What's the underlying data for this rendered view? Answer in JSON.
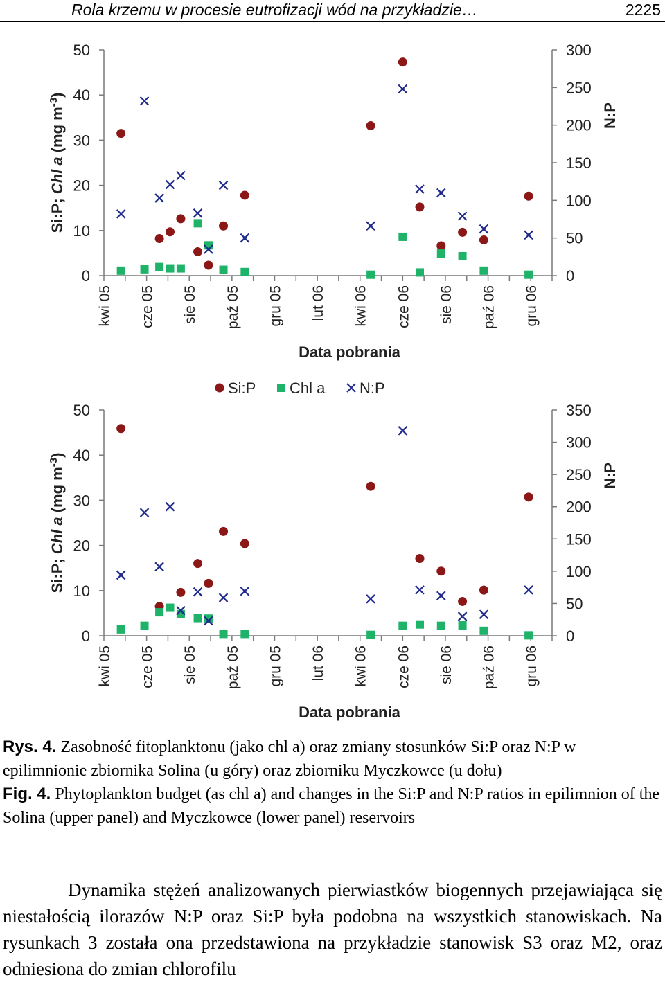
{
  "running_head": {
    "title": "Rola krzemu w procesie eutrofizacji wód na przykładzie…",
    "page": "2225"
  },
  "colors": {
    "sip": "#8b1717",
    "chla": "#1fb36a",
    "np": "#1f2a8a",
    "axis": "#7a7a7a"
  },
  "legend": {
    "sip": "Si:P",
    "chla": "Chl a",
    "np": "N:P"
  },
  "chart_data": [
    {
      "type": "scatter",
      "panel": "Solina (upper panel)",
      "xlabel": "Data pobrania",
      "ylabel_parts": [
        "Si:P; ",
        "Chl a",
        " (mg m",
        "-3",
        ")"
      ],
      "y2label": "N:P",
      "x_categories": [
        "kwi 05",
        "cze 05",
        "sie 05",
        "paź 05",
        "gru 05",
        "lut 06",
        "kwi 06",
        "cze 06",
        "sie 06",
        "paź 06",
        "gru 06"
      ],
      "x_range": [
        0,
        10.5
      ],
      "ylim": [
        0,
        50
      ],
      "yticks": [
        0,
        10,
        20,
        30,
        40,
        50
      ],
      "y2lim": [
        0,
        300
      ],
      "y2ticks": [
        0,
        50,
        100,
        150,
        200,
        250,
        300
      ],
      "series": [
        {
          "name": "Si:P",
          "axis": "left",
          "marker": "circle",
          "points": [
            [
              0.4,
              31.5
            ],
            [
              1.3,
              8.2
            ],
            [
              1.55,
              9.7
            ],
            [
              1.8,
              12.6
            ],
            [
              2.2,
              5.3
            ],
            [
              2.45,
              2.3
            ],
            [
              2.8,
              11
            ],
            [
              3.3,
              17.8
            ],
            [
              6.25,
              33.2
            ],
            [
              7.0,
              47.3
            ],
            [
              7.4,
              15.2
            ],
            [
              7.9,
              6.6
            ],
            [
              8.4,
              9.6
            ],
            [
              8.9,
              7.9
            ],
            [
              9.95,
              17.6
            ]
          ]
        },
        {
          "name": "Chl a",
          "axis": "left",
          "marker": "square",
          "points": [
            [
              0.4,
              1.1
            ],
            [
              0.95,
              1.4
            ],
            [
              1.3,
              1.9
            ],
            [
              1.55,
              1.6
            ],
            [
              1.8,
              1.6
            ],
            [
              2.2,
              11.6
            ],
            [
              2.45,
              6.7
            ],
            [
              2.8,
              1.3
            ],
            [
              3.3,
              0.8
            ],
            [
              6.25,
              0.2
            ],
            [
              7.0,
              8.6
            ],
            [
              7.4,
              0.7
            ],
            [
              7.9,
              4.9
            ],
            [
              8.4,
              4.3
            ],
            [
              8.9,
              1.1
            ],
            [
              9.95,
              0.2
            ]
          ]
        },
        {
          "name": "N:P",
          "axis": "right",
          "marker": "x",
          "points": [
            [
              0.4,
              82
            ],
            [
              0.95,
              232
            ],
            [
              1.3,
              103
            ],
            [
              1.55,
              121
            ],
            [
              1.8,
              133
            ],
            [
              2.2,
              83
            ],
            [
              2.45,
              35
            ],
            [
              2.8,
              120
            ],
            [
              3.3,
              50
            ],
            [
              6.25,
              66
            ],
            [
              7.0,
              248
            ],
            [
              7.4,
              115
            ],
            [
              7.9,
              110
            ],
            [
              8.4,
              79
            ],
            [
              8.9,
              62
            ],
            [
              9.95,
              54
            ]
          ]
        }
      ]
    },
    {
      "type": "scatter",
      "panel": "Myczkowce (lower panel)",
      "xlabel": "Data pobrania",
      "ylabel_parts": [
        "Si:P; ",
        "Chl a",
        " (mg m",
        "-3",
        ")"
      ],
      "y2label": "N:P",
      "x_categories": [
        "kwi 05",
        "cze 05",
        "sie 05",
        "paź 05",
        "gru 05",
        "lut 06",
        "kwi 06",
        "cze 06",
        "sie 06",
        "paź 06",
        "gru 06"
      ],
      "x_range": [
        0,
        10.5
      ],
      "ylim": [
        0,
        50
      ],
      "yticks": [
        0,
        10,
        20,
        30,
        40,
        50
      ],
      "y2lim": [
        0,
        350
      ],
      "y2ticks": [
        0,
        50,
        100,
        150,
        200,
        250,
        300,
        350
      ],
      "series": [
        {
          "name": "Si:P",
          "axis": "left",
          "marker": "circle",
          "points": [
            [
              0.4,
              45.9
            ],
            [
              1.3,
              6.5
            ],
            [
              1.8,
              9.6
            ],
            [
              2.2,
              16
            ],
            [
              2.45,
              11.6
            ],
            [
              2.8,
              23.1
            ],
            [
              3.3,
              20.4
            ],
            [
              6.25,
              33.1
            ],
            [
              7.4,
              17.1
            ],
            [
              7.9,
              14.3
            ],
            [
              8.4,
              7.6
            ],
            [
              8.9,
              10.1
            ],
            [
              9.95,
              30.7
            ]
          ]
        },
        {
          "name": "Chl a",
          "axis": "left",
          "marker": "square",
          "points": [
            [
              0.4,
              1.4
            ],
            [
              0.95,
              2.2
            ],
            [
              1.3,
              5.2
            ],
            [
              1.55,
              6.2
            ],
            [
              1.8,
              4.8
            ],
            [
              2.2,
              3.9
            ],
            [
              2.45,
              3.8
            ],
            [
              2.8,
              0.4
            ],
            [
              3.3,
              0.4
            ],
            [
              6.25,
              0.2
            ],
            [
              7.0,
              2.2
            ],
            [
              7.4,
              2.5
            ],
            [
              7.9,
              2.2
            ],
            [
              8.4,
              2.3
            ],
            [
              8.9,
              1.1
            ],
            [
              9.95,
              0.1
            ]
          ]
        },
        {
          "name": "N:P",
          "axis": "right",
          "marker": "x",
          "points": [
            [
              0.4,
              94
            ],
            [
              0.95,
              191
            ],
            [
              1.3,
              107
            ],
            [
              1.55,
              200
            ],
            [
              1.8,
              39
            ],
            [
              2.2,
              68
            ],
            [
              2.45,
              23
            ],
            [
              2.8,
              59
            ],
            [
              3.3,
              69
            ],
            [
              6.25,
              57
            ],
            [
              7.0,
              318
            ],
            [
              7.4,
              71
            ],
            [
              7.9,
              62
            ],
            [
              8.4,
              30
            ],
            [
              8.9,
              33
            ],
            [
              9.95,
              71
            ]
          ]
        }
      ]
    }
  ],
  "caption": {
    "pl_label": "Rys. 4.",
    "pl_text": "Zasobność fitoplanktonu (jako chl a) oraz zmiany stosunków Si:P oraz N:P w epilimnionie zbiornika Solina (u góry) oraz zbiorniku Myczkowce (u dołu)",
    "en_label": "Fig. 4.",
    "en_text": "Phytoplankton budget (as chl a) and changes in the Si:P and N:P ratios in epilimnion of the Solina (upper panel) and Myczkowce (lower panel) reservoirs"
  },
  "body_text": "Dynamika stężeń analizowanych pierwiastków biogennych przejawiająca się niestałością ilorazów N:P oraz Si:P była podobna na wszystkich stanowiskach. Na rysunkach 3 została ona przedstawiona na przykładzie stanowisk S3 oraz M2, oraz odniesiona do zmian chlorofilu"
}
